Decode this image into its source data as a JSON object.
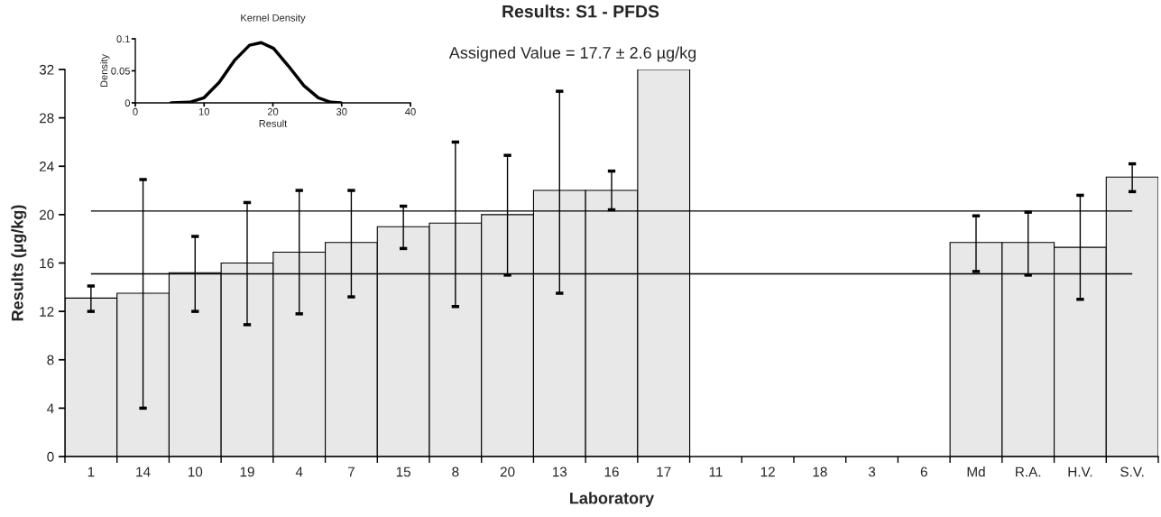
{
  "chart_data": [
    {
      "type": "bar",
      "title": "Results: S1 - PFDS",
      "subtitle": "Assigned Value = 17.7 ± 2.6 µg/kg",
      "xlabel": "Laboratory",
      "ylabel": "Results (µg/kg)",
      "categories": [
        "1",
        "14",
        "10",
        "19",
        "4",
        "7",
        "15",
        "8",
        "20",
        "13",
        "16",
        "17",
        "11",
        "12",
        "18",
        "3",
        "6",
        "Md",
        "R.A.",
        "H.V.",
        "S.V."
      ],
      "values": [
        13.1,
        13.5,
        15.2,
        16.0,
        16.9,
        17.7,
        19.0,
        19.3,
        20.0,
        22.0,
        22.0,
        32,
        null,
        null,
        null,
        null,
        null,
        17.7,
        17.7,
        17.3,
        23.1
      ],
      "errors": [
        [
          12.0,
          14.1
        ],
        [
          4.0,
          22.9
        ],
        [
          12.0,
          18.2
        ],
        [
          10.9,
          21.0
        ],
        [
          11.8,
          22.0
        ],
        [
          13.2,
          22.0
        ],
        [
          17.2,
          20.7
        ],
        [
          12.4,
          26.0
        ],
        [
          15.0,
          24.9
        ],
        [
          13.5,
          30.2
        ],
        [
          20.4,
          23.6
        ],
        null,
        null,
        null,
        null,
        null,
        null,
        [
          15.3,
          19.9
        ],
        [
          15.0,
          20.2
        ],
        [
          13.0,
          21.6
        ],
        [
          21.9,
          24.2
        ]
      ],
      "color": "#e8e8e8",
      "ylim": [
        0,
        32
      ],
      "yticks": [
        0,
        4,
        8,
        12,
        16,
        20,
        24,
        28,
        32
      ],
      "ref_lines": [
        {
          "axis": "y",
          "value": 20.3
        },
        {
          "axis": "y",
          "value": 15.1
        }
      ]
    },
    {
      "type": "line",
      "title": "Kernel Density",
      "xlabel": "Result",
      "ylabel": "Density",
      "x": [
        5.2,
        7.9,
        10.0,
        12.2,
        14.4,
        16.6,
        18.3,
        20.1,
        22.3,
        24.5,
        26.6,
        28.4,
        29.9
      ],
      "values": [
        0,
        0.001,
        0.008,
        0.032,
        0.066,
        0.09,
        0.094,
        0.085,
        0.057,
        0.027,
        0.008,
        0.001,
        0
      ],
      "color": "#000000",
      "xlim": [
        0,
        40
      ],
      "xticks": [
        0,
        10,
        20,
        30,
        40
      ],
      "ylim": [
        0,
        0.1
      ],
      "yticks": [
        0,
        0.05,
        0.1
      ]
    }
  ]
}
